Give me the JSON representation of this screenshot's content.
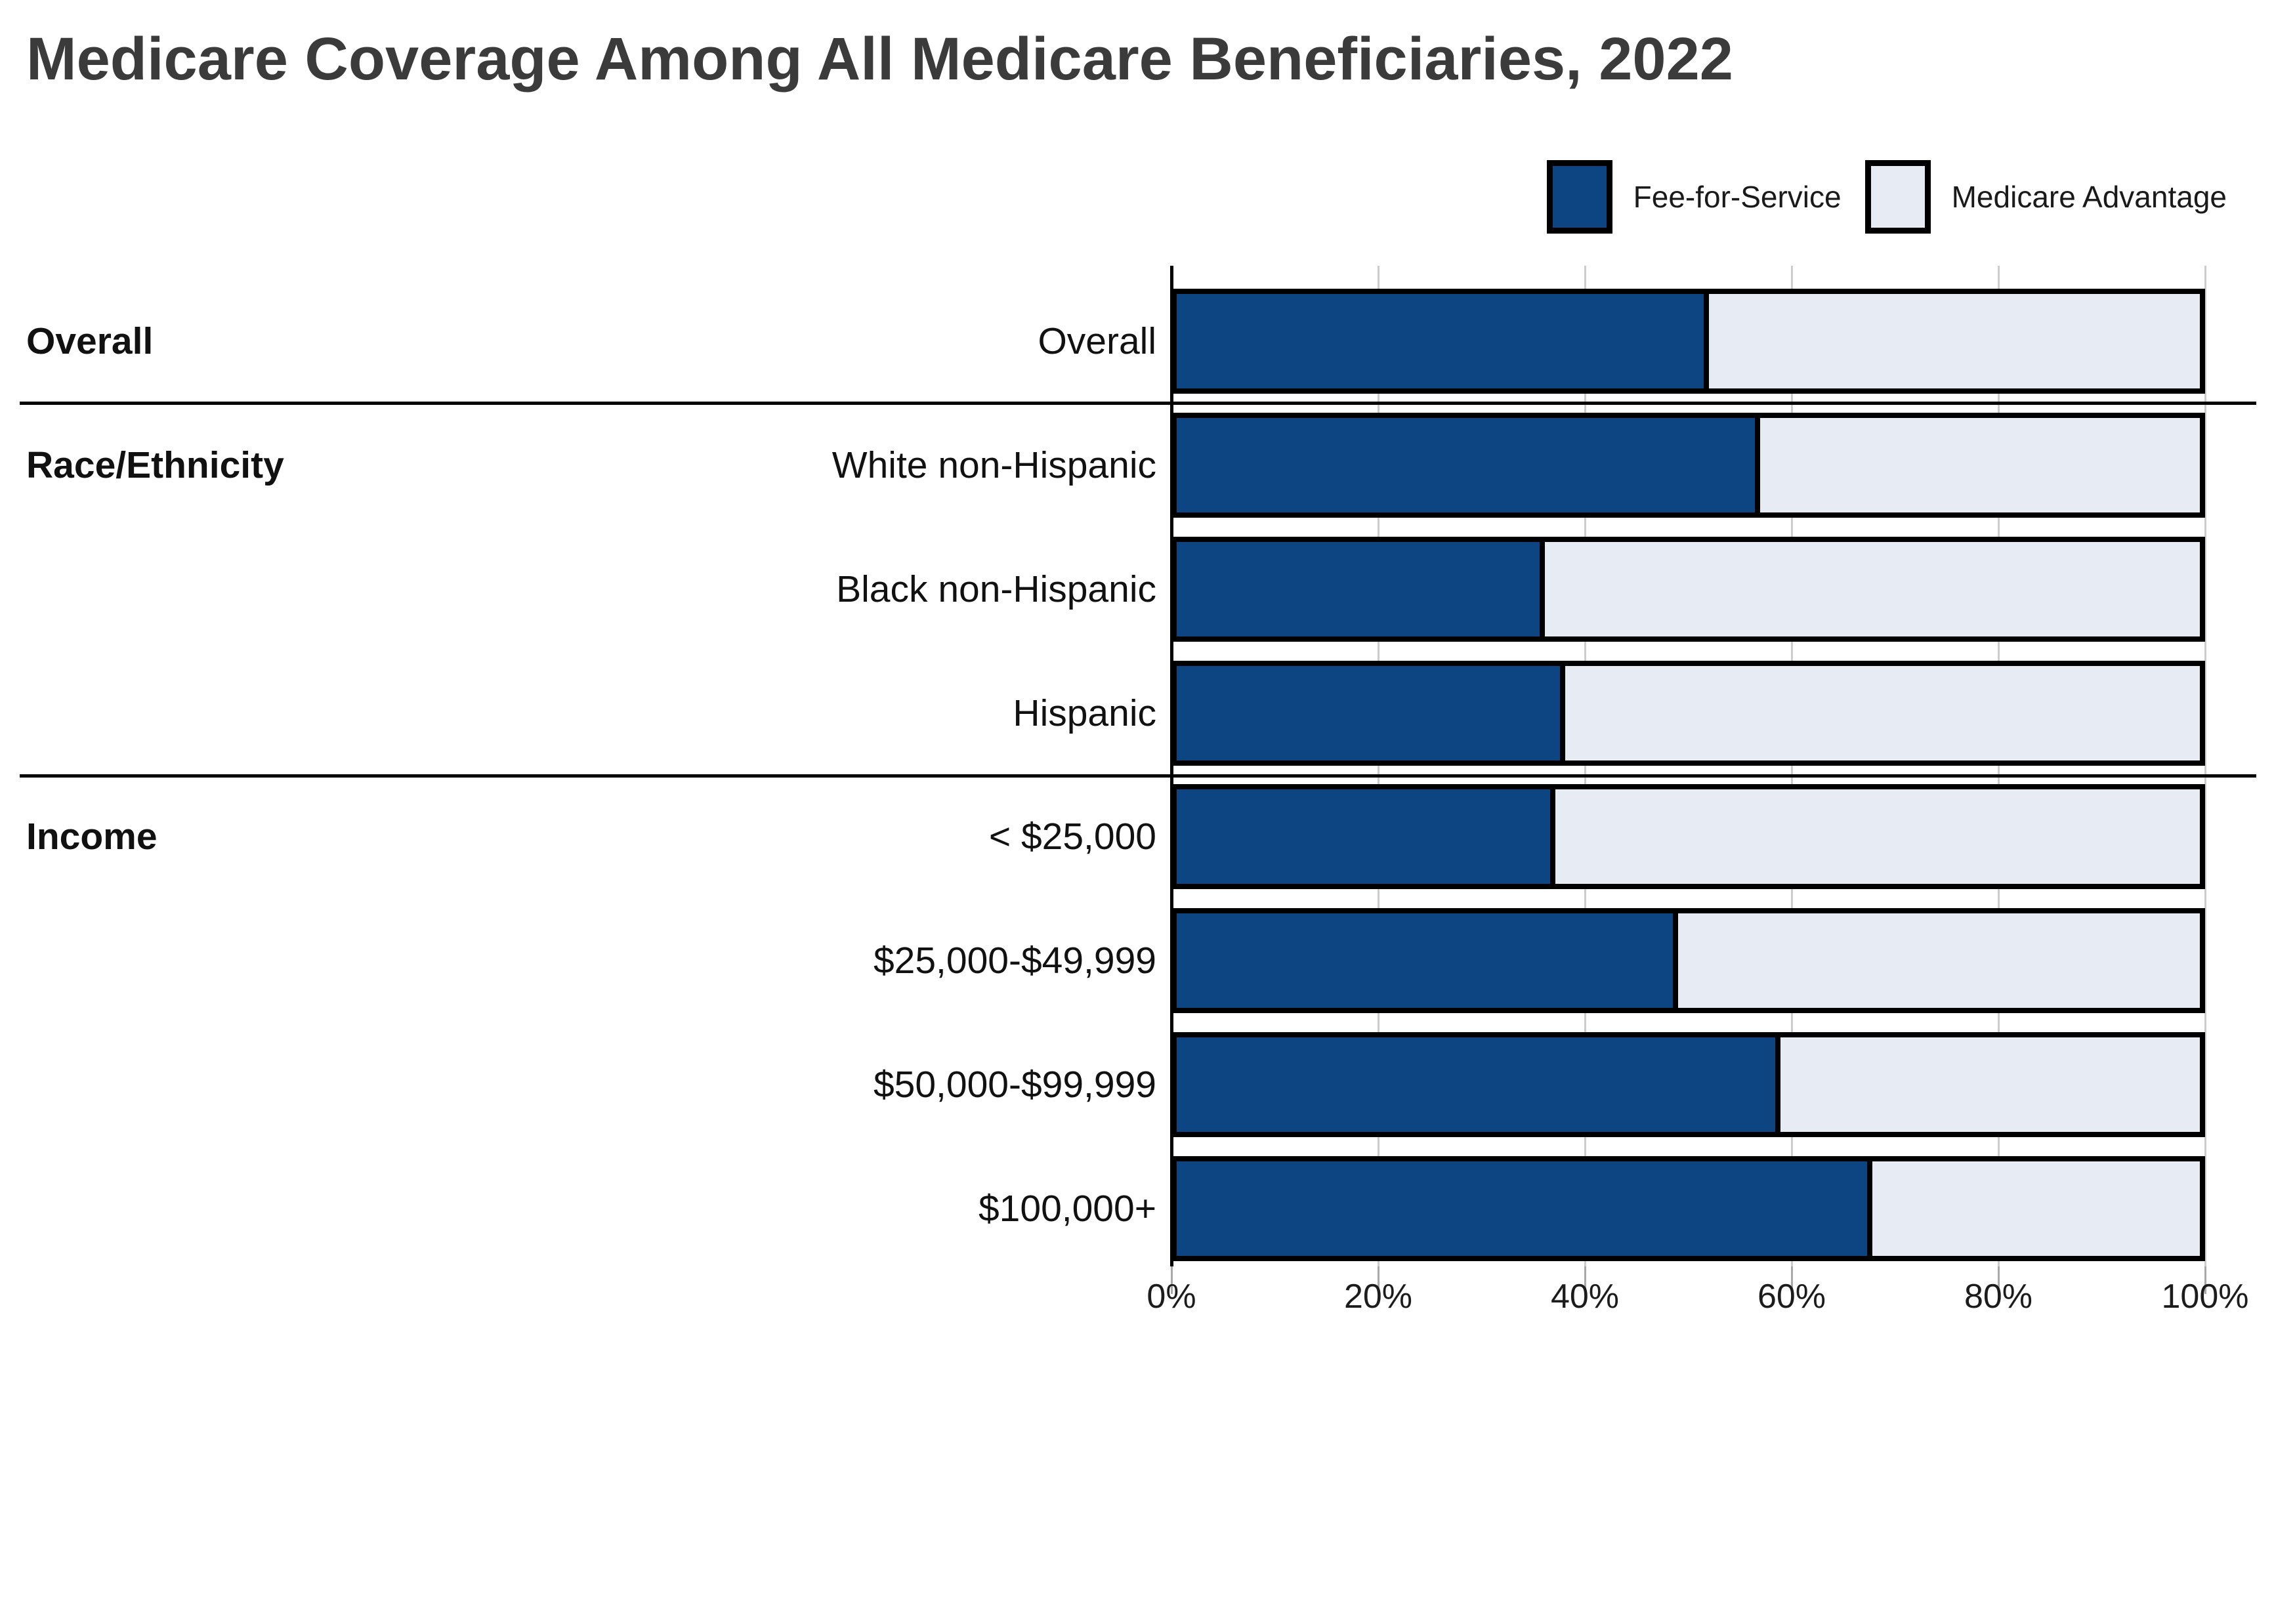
{
  "chart_data": {
    "type": "bar",
    "subtype": "horizontal-stacked-100pct",
    "title": "Medicare Coverage Among All Medicare Beneficiaries, 2022",
    "legend": [
      "Fee-for-Service",
      "Medicare Advantage"
    ],
    "legend_position": "top-right",
    "categories": [
      "Overall",
      "White non-Hispanic",
      "Black non-Hispanic",
      "Hispanic",
      "< $25,000",
      "$25,000-$49,999",
      "$50,000-$99,999",
      "$100,000+"
    ],
    "series": [
      {
        "name": "Fee-for-Service",
        "color": "#0d4583",
        "values": [
          52,
          57,
          36,
          38,
          37,
          49,
          59,
          68
        ]
      },
      {
        "name": "Medicare Advantage",
        "color": "#e7ebf4",
        "values": [
          48,
          43,
          64,
          62,
          63,
          51,
          41,
          32
        ]
      }
    ],
    "sections": [
      {
        "label": "Overall",
        "row_indexes": [
          0
        ]
      },
      {
        "label": "Race/Ethnicity",
        "row_indexes": [
          1,
          2,
          3
        ]
      },
      {
        "label": "Income",
        "row_indexes": [
          4,
          5,
          6,
          7
        ]
      }
    ],
    "x_ticks": [
      "0%",
      "20%",
      "40%",
      "60%",
      "80%",
      "100%"
    ],
    "xlim": [
      0,
      100
    ],
    "grid": "vertical-light-gray",
    "bar_outline_color": "#000000",
    "title_color": "#3b3b3b",
    "section_separator_color": "#000000"
  }
}
